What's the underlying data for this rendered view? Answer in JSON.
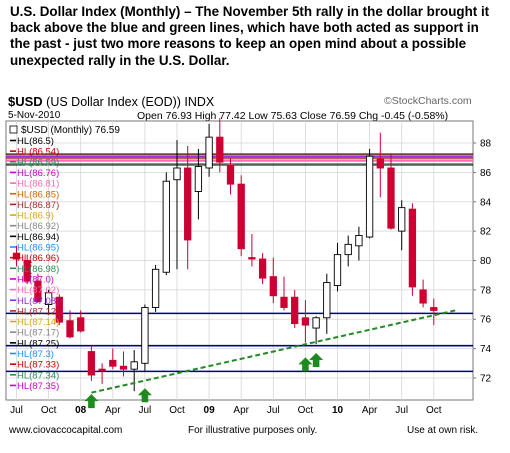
{
  "caption": "U.S. Dollar Index (Monthly) – The November 5th rally in the dollar brought it back above the blue and green lines, which have both acted as support in the past - just two more reasons to keep an open mind about a possible unexpected rally in the U.S. Dollar.",
  "header": {
    "symbol": "$USD",
    "name": "(US Dollar Index (EOD)) INDX",
    "date": "5-Nov-2010",
    "ohlc": "Open 76.93  High 77.42  Low 75.63  Close 76.59  Chg -0.45 (-0.58%)",
    "brand": "©StockCharts.com"
  },
  "footer": {
    "website": "www.ciovaccocapital.com",
    "note": "For illustrative purposes only.",
    "risk": "Use at own risk."
  },
  "colors": {
    "up_candle": "#ffffff",
    "down_candle": "#cc0033",
    "support_line": "#00008b",
    "trendline": "#228b22",
    "arrow": "#1f8a1f"
  },
  "chart_data": {
    "type": "candlestick",
    "series_label": "$USD (Monthly) 76.59",
    "ylim": [
      70.5,
      89.5
    ],
    "y_ticks": [
      72,
      74,
      76,
      78,
      80,
      82,
      84,
      86,
      88
    ],
    "x_tick_labels": [
      {
        "label": "Jul",
        "idx": 0
      },
      {
        "label": "Oct",
        "idx": 3
      },
      {
        "label": "08",
        "idx": 6
      },
      {
        "label": "Apr",
        "idx": 9
      },
      {
        "label": "Jul",
        "idx": 12
      },
      {
        "label": "Oct",
        "idx": 15
      },
      {
        "label": "09",
        "idx": 18
      },
      {
        "label": "Apr",
        "idx": 21
      },
      {
        "label": "Jul",
        "idx": 24
      },
      {
        "label": "Oct",
        "idx": 27
      },
      {
        "label": "10",
        "idx": 30
      },
      {
        "label": "Apr",
        "idx": 33
      },
      {
        "label": "Jul",
        "idx": 36
      },
      {
        "label": "Oct",
        "idx": 39
      }
    ],
    "candles": [
      {
        "o": 80.5,
        "h": 81.0,
        "l": 79.6,
        "c": 80.1
      },
      {
        "o": 80.0,
        "h": 80.4,
        "l": 78.4,
        "c": 78.6
      },
      {
        "o": 78.6,
        "h": 79.1,
        "l": 77.1,
        "c": 77.2
      },
      {
        "o": 77.0,
        "h": 78.0,
        "l": 76.3,
        "c": 77.8
      },
      {
        "o": 77.5,
        "h": 77.7,
        "l": 75.6,
        "c": 75.8
      },
      {
        "o": 75.9,
        "h": 76.6,
        "l": 74.7,
        "c": 74.8
      },
      {
        "o": 76.1,
        "h": 76.6,
        "l": 75.1,
        "c": 75.2
      },
      {
        "o": 73.8,
        "h": 74.2,
        "l": 71.8,
        "c": 72.2
      },
      {
        "o": 72.6,
        "h": 73.0,
        "l": 71.6,
        "c": 72.5
      },
      {
        "o": 73.2,
        "h": 74.0,
        "l": 72.6,
        "c": 72.8
      },
      {
        "o": 72.8,
        "h": 73.8,
        "l": 72.1,
        "c": 72.6
      },
      {
        "o": 72.6,
        "h": 73.9,
        "l": 71.1,
        "c": 73.1
      },
      {
        "o": 73.0,
        "h": 77.0,
        "l": 72.5,
        "c": 76.8
      },
      {
        "o": 76.8,
        "h": 79.7,
        "l": 76.5,
        "c": 79.4
      },
      {
        "o": 79.2,
        "h": 86.0,
        "l": 79.0,
        "c": 85.4
      },
      {
        "o": 85.5,
        "h": 88.2,
        "l": 79.4,
        "c": 86.3
      },
      {
        "o": 86.3,
        "h": 87.8,
        "l": 79.4,
        "c": 81.4
      },
      {
        "o": 84.7,
        "h": 87.6,
        "l": 82.8,
        "c": 86.4
      },
      {
        "o": 86.3,
        "h": 89.3,
        "l": 85.7,
        "c": 88.4
      },
      {
        "o": 88.4,
        "h": 89.7,
        "l": 86.0,
        "c": 86.7
      },
      {
        "o": 86.5,
        "h": 87.0,
        "l": 84.5,
        "c": 85.2
      },
      {
        "o": 85.2,
        "h": 85.8,
        "l": 80.3,
        "c": 80.8
      },
      {
        "o": 80.2,
        "h": 81.8,
        "l": 79.6,
        "c": 80.1
      },
      {
        "o": 80.1,
        "h": 80.5,
        "l": 78.4,
        "c": 78.8
      },
      {
        "o": 78.9,
        "h": 80.2,
        "l": 77.1,
        "c": 77.6
      },
      {
        "o": 77.5,
        "h": 78.9,
        "l": 76.6,
        "c": 76.8
      },
      {
        "o": 77.5,
        "h": 78.0,
        "l": 75.4,
        "c": 75.7
      },
      {
        "o": 76.1,
        "h": 77.3,
        "l": 74.4,
        "c": 75.6
      },
      {
        "o": 75.4,
        "h": 76.2,
        "l": 74.3,
        "c": 76.1
      },
      {
        "o": 76.1,
        "h": 79.1,
        "l": 75.0,
        "c": 78.5
      },
      {
        "o": 78.3,
        "h": 81.2,
        "l": 77.9,
        "c": 80.4
      },
      {
        "o": 80.4,
        "h": 81.7,
        "l": 79.6,
        "c": 81.1
      },
      {
        "o": 81.0,
        "h": 82.3,
        "l": 80.0,
        "c": 81.7
      },
      {
        "o": 81.6,
        "h": 87.6,
        "l": 81.5,
        "c": 87.1
      },
      {
        "o": 86.9,
        "h": 88.7,
        "l": 84.3,
        "c": 86.3
      },
      {
        "o": 86.3,
        "h": 87.3,
        "l": 82.1,
        "c": 82.2
      },
      {
        "o": 82.0,
        "h": 84.1,
        "l": 80.7,
        "c": 83.6
      },
      {
        "o": 83.5,
        "h": 83.9,
        "l": 77.6,
        "c": 78.2
      },
      {
        "o": 78.0,
        "h": 78.7,
        "l": 76.8,
        "c": 77.1
      },
      {
        "o": 76.8,
        "h": 77.4,
        "l": 75.6,
        "c": 76.6
      }
    ],
    "horizontal_lines": [
      {
        "value": 87.25,
        "color": "#000000"
      },
      {
        "value": 87.17,
        "color": "#cc0000"
      },
      {
        "value": 87.14,
        "color": "#a0a0a0"
      },
      {
        "value": 87.08,
        "color": "#8a2be2"
      },
      {
        "value": 87.02,
        "color": "#ff69b4"
      },
      {
        "value": 86.98,
        "color": "#cc0000"
      },
      {
        "value": 86.9,
        "color": "#a0a0a0"
      },
      {
        "value": 86.81,
        "color": "#ff69b4"
      },
      {
        "value": 86.76,
        "color": "#ff69b4"
      },
      {
        "value": 86.59,
        "color": "#2e8b57"
      },
      {
        "value": 86.5,
        "color": "#000000"
      },
      {
        "value": 76.4,
        "color": "#00008b"
      },
      {
        "value": 74.2,
        "color": "#00008b"
      },
      {
        "value": 72.45,
        "color": "#00008b"
      }
    ],
    "trendline": {
      "from": {
        "idx": 7,
        "value": 71.0
      },
      "to": {
        "idx": 41,
        "value": 76.6
      }
    },
    "arrows": [
      {
        "idx": 7,
        "value": 70.9
      },
      {
        "idx": 12,
        "value": 71.3
      },
      {
        "idx": 27,
        "value": 73.4
      },
      {
        "idx": 28,
        "value": 73.7
      }
    ],
    "legend": [
      {
        "label": "HL(86.5)",
        "color": "#000000"
      },
      {
        "label": "HL(86.54)",
        "color": "#cc0000"
      },
      {
        "label": "HL(86.59)",
        "color": "#2e8b57"
      },
      {
        "label": "HL(86.76)",
        "color": "#cc00cc"
      },
      {
        "label": "HL(86.81)",
        "color": "#ff69b4"
      },
      {
        "label": "HL(86.85)",
        "color": "#cc6600"
      },
      {
        "label": "HL(86.87)",
        "color": "#a52a2a"
      },
      {
        "label": "HL(86.9)",
        "color": "#daa520"
      },
      {
        "label": "HL(86.92)",
        "color": "#888888"
      },
      {
        "label": "HL(86.94)",
        "color": "#000000"
      },
      {
        "label": "HL(86.95)",
        "color": "#1e90ff"
      },
      {
        "label": "HL(86.96)",
        "color": "#cc0000"
      },
      {
        "label": "HL(86.98)",
        "color": "#2e8b57"
      },
      {
        "label": "HL(87.0)",
        "color": "#cc00cc"
      },
      {
        "label": "HL(87.02)",
        "color": "#ff69b4"
      },
      {
        "label": "HL(87.08)",
        "color": "#8a2be2"
      },
      {
        "label": "HL(87.12)",
        "color": "#a52a2a"
      },
      {
        "label": "HL(87.14)",
        "color": "#daa520"
      },
      {
        "label": "HL(87.17)",
        "color": "#888888"
      },
      {
        "label": "HL(87.25)",
        "color": "#000000"
      },
      {
        "label": "HL(87.3)",
        "color": "#1e90ff"
      },
      {
        "label": "HL(87.33)",
        "color": "#cc0000"
      },
      {
        "label": "HL(87.34)",
        "color": "#2e8b57"
      },
      {
        "label": "HL(87.35)",
        "color": "#cc00cc"
      }
    ]
  }
}
